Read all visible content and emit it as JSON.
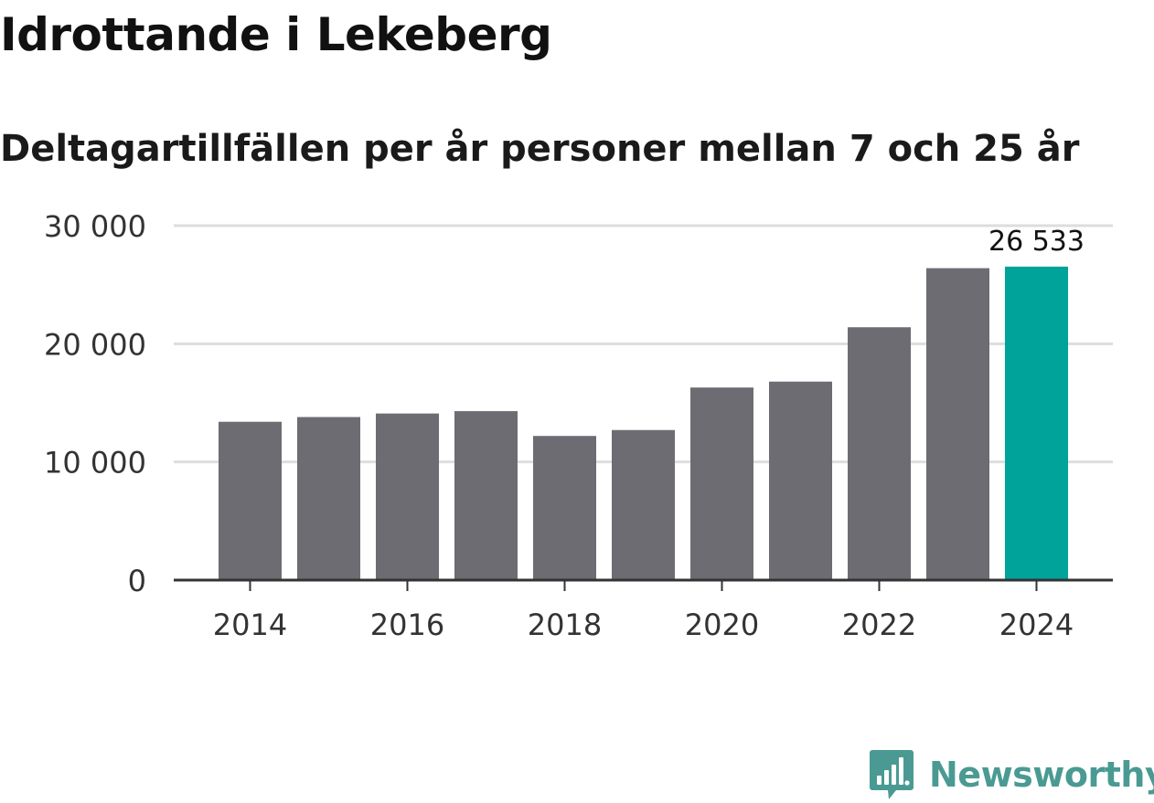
{
  "title": "Idrottande i Lekeberg",
  "subtitle": "Deltagartillfällen per år personer mellan 7 och 25 år",
  "brand": {
    "name": "Newsworthy",
    "logo_icon": "bar-chart-speech-bubble-icon",
    "color": "#4a9a93"
  },
  "colors": {
    "bar": "#6d6c72",
    "highlight": "#00a39a",
    "grid": "#dddddd",
    "axis": "#333333"
  },
  "chart_data": {
    "type": "bar",
    "title": "Idrottande i Lekeberg",
    "subtitle": "Deltagartillfällen per år personer mellan 7 och 25 år",
    "xlabel": "",
    "ylabel": "",
    "categories": [
      "2014",
      "2015",
      "2016",
      "2017",
      "2018",
      "2019",
      "2020",
      "2021",
      "2022",
      "2023",
      "2024"
    ],
    "values": [
      13400,
      13800,
      14100,
      14300,
      12200,
      12700,
      16300,
      16800,
      21400,
      26400,
      26533
    ],
    "x_tick_labels": [
      "2014",
      "2016",
      "2018",
      "2020",
      "2022",
      "2024"
    ],
    "y_ticks": [
      0,
      10000,
      20000,
      30000
    ],
    "y_tick_labels": [
      "0",
      "10 000",
      "20 000",
      "30 000"
    ],
    "ylim": [
      0,
      30000
    ],
    "grid": true,
    "highlight_index": 10,
    "data_labels": [
      {
        "index": 10,
        "text": "26 533"
      }
    ]
  }
}
